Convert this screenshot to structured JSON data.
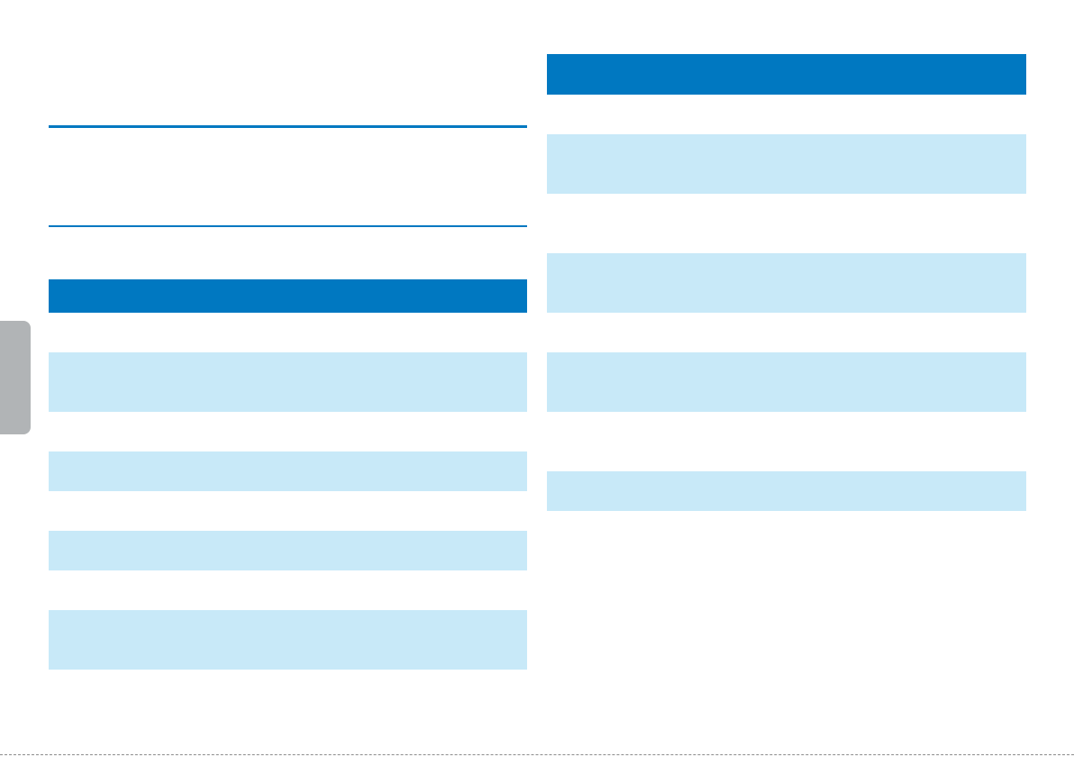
{
  "colors": {
    "accent": "#0078c1",
    "row_light": "#c8e9f8",
    "side_tab": "#b1b4b6",
    "background": "#ffffff"
  },
  "side_tab": {
    "label": ""
  },
  "left_column": {
    "table": {
      "header": ""
    }
  },
  "right_column": {
    "table": {
      "header": ""
    }
  }
}
